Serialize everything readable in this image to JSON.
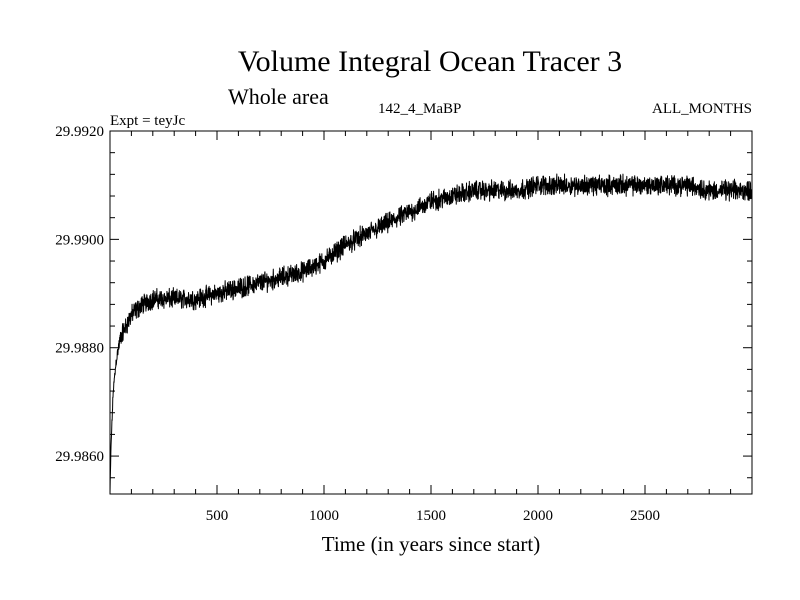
{
  "chart_data": {
    "type": "line",
    "title": "Volume Integral Ocean Tracer 3",
    "subtitle": "Whole area",
    "experiment_label": "Expt = teyJc",
    "run_label": "142_4_MaBP",
    "period_label": "ALL_MONTHS",
    "xlabel": "Time (in years since start)",
    "ylabel": "",
    "xlim": [
      0,
      3000
    ],
    "ylim": [
      29.9853,
      29.992
    ],
    "x_ticks": [
      500,
      1000,
      1500,
      2000,
      2500
    ],
    "x_tick_labels": [
      "500",
      "1000",
      "1500",
      "2000",
      "2500"
    ],
    "y_ticks": [
      29.986,
      29.988,
      29.99,
      29.992
    ],
    "y_tick_labels": [
      "29.9860",
      "29.9880",
      "29.9900",
      "29.9920"
    ],
    "grid": false,
    "series": [
      {
        "name": "Volume Integral Ocean Tracer 3",
        "color": "#000000",
        "noise": 0.00022,
        "x": [
          0,
          5,
          15,
          30,
          50,
          75,
          100,
          150,
          200,
          300,
          400,
          500,
          600,
          700,
          800,
          900,
          1000,
          1100,
          1200,
          1300,
          1400,
          1500,
          1600,
          1700,
          1800,
          1900,
          2000,
          2100,
          2200,
          2300,
          2400,
          2500,
          2600,
          2700,
          2800,
          2900,
          3000
        ],
        "values": [
          29.9853,
          29.9862,
          29.9872,
          29.9878,
          29.9882,
          29.9884,
          29.9886,
          29.9888,
          29.9889,
          29.9889,
          29.9889,
          29.989,
          29.9891,
          29.9892,
          29.9893,
          29.9894,
          29.9896,
          29.9899,
          29.9901,
          29.9903,
          29.9905,
          29.9907,
          29.9908,
          29.9909,
          29.9909,
          29.9909,
          29.991,
          29.991,
          29.991,
          29.991,
          29.991,
          29.991,
          29.991,
          29.991,
          29.9909,
          29.9909,
          29.9909
        ]
      }
    ]
  }
}
